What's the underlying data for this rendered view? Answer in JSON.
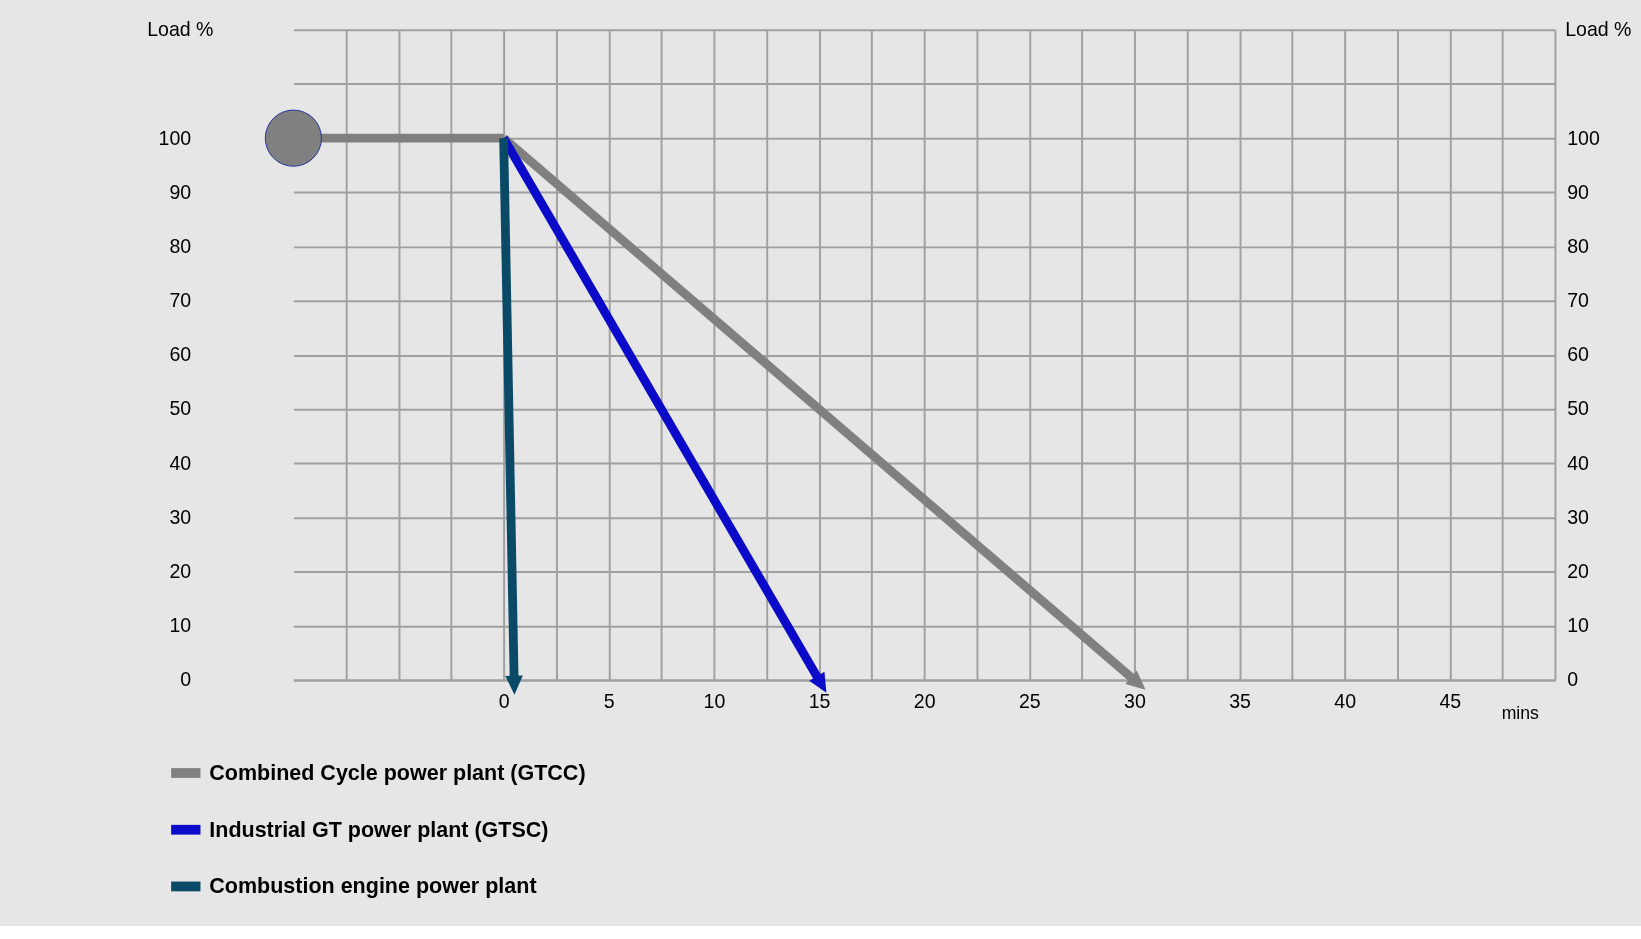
{
  "chart_data": {
    "type": "line",
    "ylabel": "Load %",
    "y2label": "Load %",
    "xlabel": "mins",
    "xlim": [
      -10,
      50
    ],
    "ylim": [
      0,
      120
    ],
    "y2lim": [
      0,
      120
    ],
    "xticks": [
      {
        "value": -7.5,
        "label": null
      },
      {
        "value": -5,
        "label": null
      },
      {
        "value": -2.5,
        "label": null
      },
      0,
      {
        "value": 2.5,
        "label": null
      },
      5,
      {
        "value": 7.5,
        "label": null
      },
      10,
      {
        "value": 12.5,
        "label": null
      },
      15,
      {
        "value": 17.5,
        "label": null
      },
      20,
      {
        "value": 22.5,
        "label": null
      },
      25,
      {
        "value": 27.5,
        "label": null
      },
      30,
      {
        "value": 32.5,
        "label": null
      },
      35,
      {
        "value": 37.5,
        "label": null
      },
      40,
      {
        "value": 42.5,
        "label": null
      },
      45,
      {
        "value": 47.5,
        "label": null
      }
    ],
    "yticks": [
      0,
      10,
      20,
      30,
      40,
      50,
      60,
      70,
      80,
      90,
      100,
      {
        "value": 110,
        "label": null
      },
      {
        "value": 120,
        "label": null
      }
    ],
    "y2ticks": [
      0,
      10,
      20,
      30,
      40,
      50,
      60,
      70,
      80,
      90,
      100
    ],
    "grid": true,
    "legend": "bottom",
    "line_style": "solid",
    "series": [
      {
        "type": "line",
        "color": "#808080",
        "x": [
          -10,
          0
        ],
        "values": [
          100,
          100
        ]
      },
      {
        "type": "scatter",
        "color": "#808080",
        "x": [
          -10
        ],
        "values": [
          100
        ]
      },
      {
        "name": "Combined Cycle power plant (GTCC)",
        "color": "#808080",
        "x": [
          0,
          30
        ],
        "values": [
          100,
          0
        ]
      },
      {
        "name": "Industrial GT power plant (GTSC)",
        "color": "#0a0ac8",
        "x": [
          0,
          15
        ],
        "values": [
          100,
          0
        ]
      },
      {
        "name": "Combustion engine power plant",
        "color": "#0a4a66",
        "x": [
          0,
          0.5
        ],
        "values": [
          100,
          0
        ]
      }
    ]
  }
}
